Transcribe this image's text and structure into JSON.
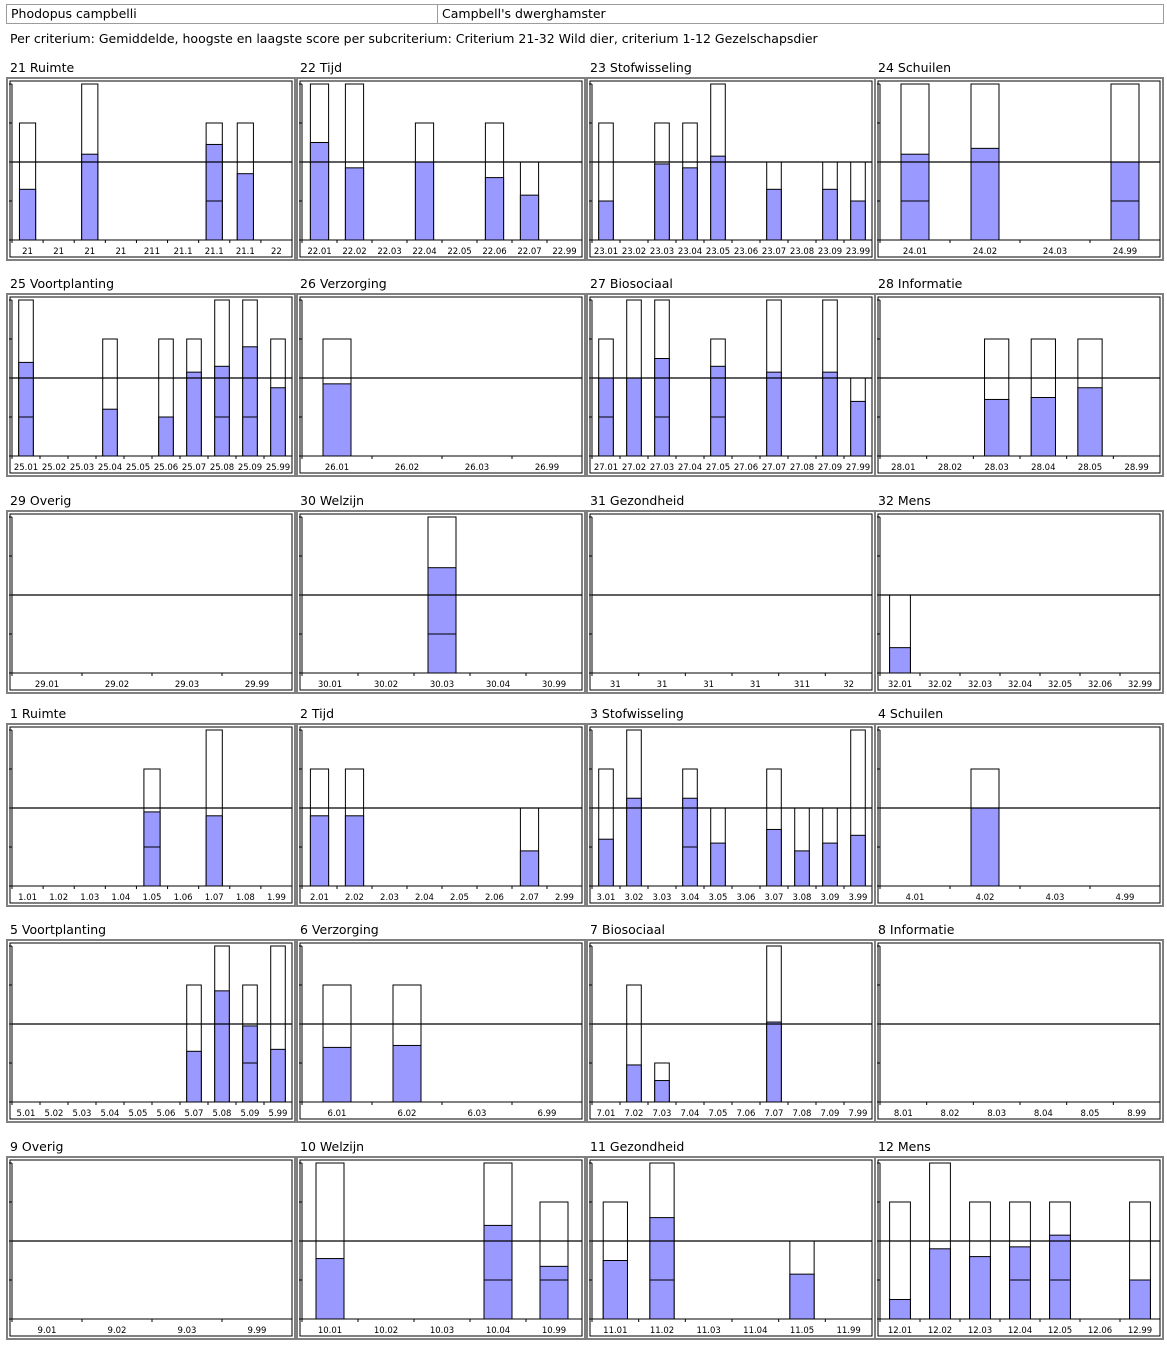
{
  "header": {
    "species_latin": "Phodopus campbelli",
    "species_dutch": "Campbell's dwerghamster"
  },
  "subtitle": "Per criterium: Gemiddelde, hoogste en laagste score per subcriterium: Criterium 21-32 Wild dier, criterium 1-12 Gezelschapsdier",
  "colors": {
    "bar_fill": "#9999ff",
    "bar_outline": "#000000",
    "frame": "#808080",
    "background": "#ffffff"
  },
  "chart_data": [
    {
      "type": "bar",
      "title": "21 Ruimte",
      "ylim": [
        0,
        4
      ],
      "categories": [
        "21",
        "21",
        "21",
        "21",
        "211",
        "21.1",
        "21.1",
        "21.1",
        "22"
      ],
      "bars": [
        {
          "c": 0,
          "mean": 1.3,
          "min": 0,
          "max": 3
        },
        {
          "c": 2,
          "mean": 2.2,
          "min": 0,
          "max": 4
        },
        {
          "c": 6,
          "mean": 2.45,
          "min": 1,
          "max": 3
        },
        {
          "c": 7,
          "mean": 1.7,
          "min": 0,
          "max": 3
        }
      ]
    },
    {
      "type": "bar",
      "title": "22 Tijd",
      "ylim": [
        0,
        4
      ],
      "categories": [
        "22.01",
        "22.02",
        "22.03",
        "22.04",
        "22.05",
        "22.06",
        "22.07",
        "22.99"
      ],
      "bars": [
        {
          "c": 0,
          "mean": 2.5,
          "min": 0,
          "max": 4
        },
        {
          "c": 1,
          "mean": 1.85,
          "min": 0,
          "max": 4
        },
        {
          "c": 3,
          "mean": 2.0,
          "min": 0,
          "max": 3
        },
        {
          "c": 5,
          "mean": 1.6,
          "min": 0,
          "max": 3
        },
        {
          "c": 6,
          "mean": 1.15,
          "min": 0,
          "max": 2
        }
      ]
    },
    {
      "type": "bar",
      "title": "23 Stofwisseling",
      "ylim": [
        0,
        4
      ],
      "categories": [
        "23.01",
        "23.02",
        "23.03",
        "23.04",
        "23.05",
        "23.06",
        "23.07",
        "23.08",
        "23.09",
        "23.99"
      ],
      "bars": [
        {
          "c": 0,
          "mean": 1.0,
          "min": 0,
          "max": 3
        },
        {
          "c": 2,
          "mean": 1.95,
          "min": 0,
          "max": 3
        },
        {
          "c": 3,
          "mean": 1.85,
          "min": 0,
          "max": 3
        },
        {
          "c": 4,
          "mean": 2.15,
          "min": 0,
          "max": 4
        },
        {
          "c": 6,
          "mean": 1.3,
          "min": 0,
          "max": 2
        },
        {
          "c": 8,
          "mean": 1.3,
          "min": 0,
          "max": 2
        },
        {
          "c": 9,
          "mean": 1.0,
          "min": 0,
          "max": 2
        }
      ]
    },
    {
      "type": "bar",
      "title": "24 Schuilen",
      "ylim": [
        0,
        4
      ],
      "categories": [
        "24.01",
        "24.02",
        "24.03",
        "24.99"
      ],
      "bars": [
        {
          "c": 0,
          "mean": 2.2,
          "min": 1,
          "max": 4
        },
        {
          "c": 1,
          "mean": 2.35,
          "min": 0,
          "max": 4
        },
        {
          "c": 3,
          "mean": 2.0,
          "min": 1,
          "max": 4
        }
      ]
    },
    {
      "type": "bar",
      "title": "25 Voortplanting",
      "ylim": [
        0,
        4
      ],
      "categories": [
        "25.01",
        "25.02",
        "25.03",
        "25.04",
        "25.05",
        "25.06",
        "25.07",
        "25.08",
        "25.09",
        "25.99"
      ],
      "bars": [
        {
          "c": 0,
          "mean": 2.4,
          "min": 1,
          "max": 4
        },
        {
          "c": 3,
          "mean": 1.2,
          "min": 0,
          "max": 3
        },
        {
          "c": 5,
          "mean": 1.0,
          "min": 0,
          "max": 3
        },
        {
          "c": 6,
          "mean": 2.15,
          "min": 0,
          "max": 3
        },
        {
          "c": 7,
          "mean": 2.3,
          "min": 1,
          "max": 4
        },
        {
          "c": 8,
          "mean": 2.8,
          "min": 1,
          "max": 4
        },
        {
          "c": 9,
          "mean": 1.75,
          "min": 0,
          "max": 3
        }
      ]
    },
    {
      "type": "bar",
      "title": "26 Verzorging",
      "ylim": [
        0,
        4
      ],
      "categories": [
        "26.01",
        "26.02",
        "26.03",
        "26.99"
      ],
      "bars": [
        {
          "c": 0,
          "mean": 1.85,
          "min": 0,
          "max": 3
        }
      ]
    },
    {
      "type": "bar",
      "title": "27 Biosociaal",
      "ylim": [
        0,
        4
      ],
      "categories": [
        "27.01",
        "27.02",
        "27.03",
        "27.04",
        "27.05",
        "27.06",
        "27.07",
        "27.08",
        "27.09",
        "27.99"
      ],
      "bars": [
        {
          "c": 0,
          "mean": 2.0,
          "min": 1,
          "max": 3
        },
        {
          "c": 1,
          "mean": 2.0,
          "min": 0,
          "max": 4
        },
        {
          "c": 2,
          "mean": 2.5,
          "min": 1,
          "max": 4
        },
        {
          "c": 4,
          "mean": 2.3,
          "min": 1,
          "max": 3
        },
        {
          "c": 6,
          "mean": 2.15,
          "min": 0,
          "max": 4
        },
        {
          "c": 8,
          "mean": 2.15,
          "min": 0,
          "max": 4
        },
        {
          "c": 9,
          "mean": 1.4,
          "min": 0,
          "max": 2
        }
      ]
    },
    {
      "type": "bar",
      "title": "28 Informatie",
      "ylim": [
        0,
        4
      ],
      "categories": [
        "28.01",
        "28.02",
        "28.03",
        "28.04",
        "28.05",
        "28.99"
      ],
      "bars": [
        {
          "c": 2,
          "mean": 1.45,
          "min": 0,
          "max": 3
        },
        {
          "c": 3,
          "mean": 1.5,
          "min": 0,
          "max": 3
        },
        {
          "c": 4,
          "mean": 1.75,
          "min": 0,
          "max": 3
        }
      ]
    },
    {
      "type": "bar",
      "title": "29 Overig",
      "ylim": [
        0,
        4
      ],
      "categories": [
        "29.01",
        "29.02",
        "29.03",
        "29.99"
      ],
      "bars": []
    },
    {
      "type": "bar",
      "title": "30 Welzijn",
      "ylim": [
        0,
        4
      ],
      "categories": [
        "30.01",
        "30.02",
        "30.03",
        "30.04",
        "30.99"
      ],
      "bars": [
        {
          "c": 2,
          "mean": 2.7,
          "min": 1,
          "max": 4
        }
      ]
    },
    {
      "type": "bar",
      "title": "31 Gezondheid",
      "ylim": [
        0,
        4
      ],
      "categories": [
        "31",
        "31",
        "31",
        "31",
        "311",
        "32"
      ],
      "bars": []
    },
    {
      "type": "bar",
      "title": "32 Mens",
      "ylim": [
        0,
        4
      ],
      "categories": [
        "32.01",
        "32.02",
        "32.03",
        "32.04",
        "32.05",
        "32.06",
        "32.99"
      ],
      "bars": [
        {
          "c": 0,
          "mean": 0.65,
          "min": 0,
          "max": 2
        }
      ]
    },
    {
      "type": "bar",
      "title": "1 Ruimte",
      "ylim": [
        0,
        4
      ],
      "categories": [
        "1.01",
        "1.02",
        "1.03",
        "1.04",
        "1.05",
        "1.06",
        "1.07",
        "1.08",
        "1.99"
      ],
      "bars": [
        {
          "c": 4,
          "mean": 1.9,
          "min": 1,
          "max": 3
        },
        {
          "c": 6,
          "mean": 1.8,
          "min": 0,
          "max": 4
        }
      ]
    },
    {
      "type": "bar",
      "title": "2 Tijd",
      "ylim": [
        0,
        4
      ],
      "categories": [
        "2.01",
        "2.02",
        "2.03",
        "2.04",
        "2.05",
        "2.06",
        "2.07",
        "2.99"
      ],
      "bars": [
        {
          "c": 0,
          "mean": 1.8,
          "min": 0,
          "max": 3
        },
        {
          "c": 1,
          "mean": 1.8,
          "min": 0,
          "max": 3
        },
        {
          "c": 6,
          "mean": 0.9,
          "min": 0,
          "max": 2
        }
      ]
    },
    {
      "type": "bar",
      "title": "3 Stofwisseling",
      "ylim": [
        0,
        4
      ],
      "categories": [
        "3.01",
        "3.02",
        "3.03",
        "3.04",
        "3.05",
        "3.06",
        "3.07",
        "3.08",
        "3.09",
        "3.99"
      ],
      "bars": [
        {
          "c": 0,
          "mean": 1.2,
          "min": 0,
          "max": 3
        },
        {
          "c": 1,
          "mean": 2.25,
          "min": 0,
          "max": 4
        },
        {
          "c": 3,
          "mean": 2.25,
          "min": 1,
          "max": 3
        },
        {
          "c": 4,
          "mean": 1.1,
          "min": 0,
          "max": 2
        },
        {
          "c": 6,
          "mean": 1.45,
          "min": 0,
          "max": 3
        },
        {
          "c": 7,
          "mean": 0.9,
          "min": 0,
          "max": 2
        },
        {
          "c": 8,
          "mean": 1.1,
          "min": 0,
          "max": 2
        },
        {
          "c": 9,
          "mean": 1.3,
          "min": 0,
          "max": 4
        }
      ]
    },
    {
      "type": "bar",
      "title": "4 Schuilen",
      "ylim": [
        0,
        4
      ],
      "categories": [
        "4.01",
        "4.02",
        "4.03",
        "4.99"
      ],
      "bars": [
        {
          "c": 1,
          "mean": 2.0,
          "min": 0,
          "max": 3
        }
      ]
    },
    {
      "type": "bar",
      "title": "5 Voortplanting",
      "ylim": [
        0,
        4
      ],
      "categories": [
        "5.01",
        "5.02",
        "5.03",
        "5.04",
        "5.05",
        "5.06",
        "5.07",
        "5.08",
        "5.09",
        "5.99"
      ],
      "bars": [
        {
          "c": 6,
          "mean": 1.3,
          "min": 0,
          "max": 3
        },
        {
          "c": 7,
          "mean": 2.85,
          "min": 0,
          "max": 4
        },
        {
          "c": 8,
          "mean": 1.95,
          "min": 1,
          "max": 3
        },
        {
          "c": 9,
          "mean": 1.35,
          "min": 0,
          "max": 4
        }
      ]
    },
    {
      "type": "bar",
      "title": "6 Verzorging",
      "ylim": [
        0,
        4
      ],
      "categories": [
        "6.01",
        "6.02",
        "6.03",
        "6.99"
      ],
      "bars": [
        {
          "c": 0,
          "mean": 1.4,
          "min": 0,
          "max": 3
        },
        {
          "c": 1,
          "mean": 1.45,
          "min": 0,
          "max": 3
        }
      ]
    },
    {
      "type": "bar",
      "title": "7 Biosociaal",
      "ylim": [
        0,
        4
      ],
      "categories": [
        "7.01",
        "7.02",
        "7.03",
        "7.04",
        "7.05",
        "7.06",
        "7.07",
        "7.08",
        "7.09",
        "7.99"
      ],
      "bars": [
        {
          "c": 1,
          "mean": 0.95,
          "min": 0,
          "max": 3
        },
        {
          "c": 2,
          "mean": 0.55,
          "min": 0,
          "max": 1
        },
        {
          "c": 6,
          "mean": 2.05,
          "min": 0,
          "max": 4
        }
      ]
    },
    {
      "type": "bar",
      "title": "8 Informatie",
      "ylim": [
        0,
        4
      ],
      "categories": [
        "8.01",
        "8.02",
        "8.03",
        "8.04",
        "8.05",
        "8.99"
      ],
      "bars": []
    },
    {
      "type": "bar",
      "title": "9 Overig",
      "ylim": [
        0,
        4
      ],
      "categories": [
        "9.01",
        "9.02",
        "9.03",
        "9.99"
      ],
      "bars": []
    },
    {
      "type": "bar",
      "title": "10 Welzijn",
      "ylim": [
        0,
        4
      ],
      "categories": [
        "10.01",
        "10.02",
        "10.03",
        "10.04",
        "10.99"
      ],
      "bars": [
        {
          "c": 0,
          "mean": 1.55,
          "min": 0,
          "max": 4
        },
        {
          "c": 3,
          "mean": 2.4,
          "min": 1,
          "max": 4
        },
        {
          "c": 4,
          "mean": 1.35,
          "min": 1,
          "max": 3
        }
      ]
    },
    {
      "type": "bar",
      "title": "11 Gezondheid",
      "ylim": [
        0,
        4
      ],
      "categories": [
        "11.01",
        "11.02",
        "11.03",
        "11.04",
        "11.05",
        "11.99"
      ],
      "bars": [
        {
          "c": 0,
          "mean": 1.5,
          "min": 0,
          "max": 3
        },
        {
          "c": 1,
          "mean": 2.6,
          "min": 1,
          "max": 4
        },
        {
          "c": 4,
          "mean": 1.15,
          "min": 0,
          "max": 2
        }
      ]
    },
    {
      "type": "bar",
      "title": "12 Mens",
      "ylim": [
        0,
        4
      ],
      "categories": [
        "12.01",
        "12.02",
        "12.03",
        "12.04",
        "12.05",
        "12.06",
        "12.99"
      ],
      "bars": [
        {
          "c": 0,
          "mean": 0.5,
          "min": 0,
          "max": 3
        },
        {
          "c": 1,
          "mean": 1.8,
          "min": 0,
          "max": 4
        },
        {
          "c": 2,
          "mean": 1.6,
          "min": 0,
          "max": 3
        },
        {
          "c": 3,
          "mean": 1.85,
          "min": 1,
          "max": 3
        },
        {
          "c": 4,
          "mean": 2.15,
          "min": 1,
          "max": 3
        },
        {
          "c": 6,
          "mean": 1.0,
          "min": 0,
          "max": 3
        }
      ]
    }
  ]
}
